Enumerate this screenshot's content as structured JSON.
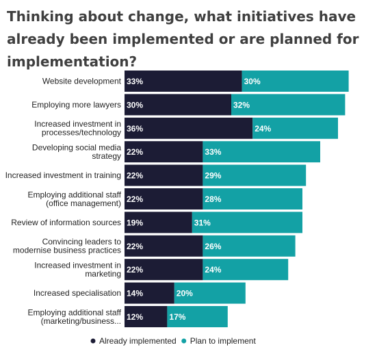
{
  "title": "Thinking about change, what initiatives have already been implemented or are planned for implementation?",
  "chart_data": {
    "type": "bar",
    "orientation": "horizontal",
    "stacked": true,
    "categories": [
      [
        "Website development"
      ],
      [
        "Employing more lawyers"
      ],
      [
        "Increased investment in",
        "processes/technology"
      ],
      [
        "Developing social media",
        "strategy"
      ],
      [
        "Increased investment in training"
      ],
      [
        "Employing additional staff",
        "(office management)"
      ],
      [
        "Review of information sources"
      ],
      [
        "Convincing leaders to",
        "modernise business practices"
      ],
      [
        "Increased investment in",
        "marketing"
      ],
      [
        "Increased specialisation"
      ],
      [
        "Employing additional staff",
        "(marketing/business..."
      ]
    ],
    "series": [
      {
        "name": "Already implemented",
        "color": "#1c1c35",
        "values": [
          33,
          30,
          36,
          22,
          22,
          22,
          19,
          22,
          22,
          14,
          12
        ]
      },
      {
        "name": "Plan to implement",
        "color": "#13a1a5",
        "values": [
          30,
          32,
          24,
          33,
          29,
          28,
          31,
          26,
          24,
          20,
          17
        ]
      }
    ],
    "value_suffix": "%",
    "legend": "bottom-center",
    "grid": false
  }
}
